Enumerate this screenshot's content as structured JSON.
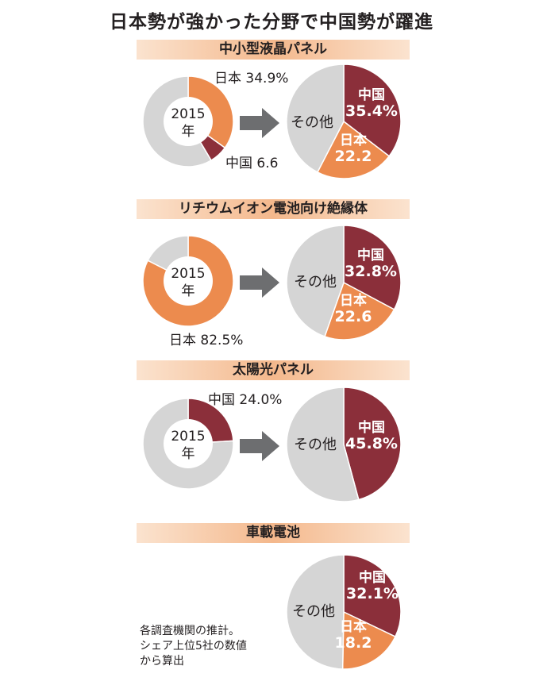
{
  "title": "日本勢が強かった分野で中国勢が躍進",
  "colors": {
    "china": "#8b2f3a",
    "japan": "#ec8b4e",
    "other": "#d5d5d5",
    "arrow": "#6d6e70"
  },
  "chart_data": [
    {
      "type": "pie",
      "section": "中小型液晶パネル",
      "before": {
        "label": "2015年",
        "slices": [
          {
            "name": "日本",
            "value": 34.9,
            "label": "日本 34.9%"
          },
          {
            "name": "中国",
            "value": 6.6,
            "label": "中国 6.6"
          },
          {
            "name": "その他",
            "value": 58.5
          }
        ]
      },
      "after": {
        "slices": [
          {
            "name": "中国",
            "value": 35.4,
            "label": "35.4%"
          },
          {
            "name": "日本",
            "value": 22.2,
            "label": "22.2"
          },
          {
            "name": "その他",
            "value": 42.4
          }
        ]
      }
    },
    {
      "type": "pie",
      "section": "リチウムイオン電池向け絶縁体",
      "before": {
        "label": "2015年",
        "slices": [
          {
            "name": "日本",
            "value": 82.5,
            "label": "日本 82.5%"
          },
          {
            "name": "その他",
            "value": 17.5
          }
        ]
      },
      "after": {
        "slices": [
          {
            "name": "中国",
            "value": 32.8,
            "label": "32.8%"
          },
          {
            "name": "日本",
            "value": 22.6,
            "label": "22.6"
          },
          {
            "name": "その他",
            "value": 44.6
          }
        ]
      }
    },
    {
      "type": "pie",
      "section": "太陽光パネル",
      "before": {
        "label": "2015年",
        "slices": [
          {
            "name": "中国",
            "value": 24.0,
            "label": "中国 24.0%"
          },
          {
            "name": "その他",
            "value": 76.0
          }
        ]
      },
      "after": {
        "slices": [
          {
            "name": "中国",
            "value": 45.8,
            "label": "45.8%"
          },
          {
            "name": "その他",
            "value": 54.2
          }
        ]
      }
    },
    {
      "type": "pie",
      "section": "車載電池",
      "before": null,
      "after": {
        "slices": [
          {
            "name": "中国",
            "value": 32.1,
            "label": "32.1%"
          },
          {
            "name": "日本",
            "value": 18.2,
            "label": "18.2"
          },
          {
            "name": "その他",
            "value": 49.7
          }
        ]
      }
    }
  ],
  "note": [
    "各調査機関の推計。",
    "シェア上位5社の数値",
    "から算出"
  ]
}
